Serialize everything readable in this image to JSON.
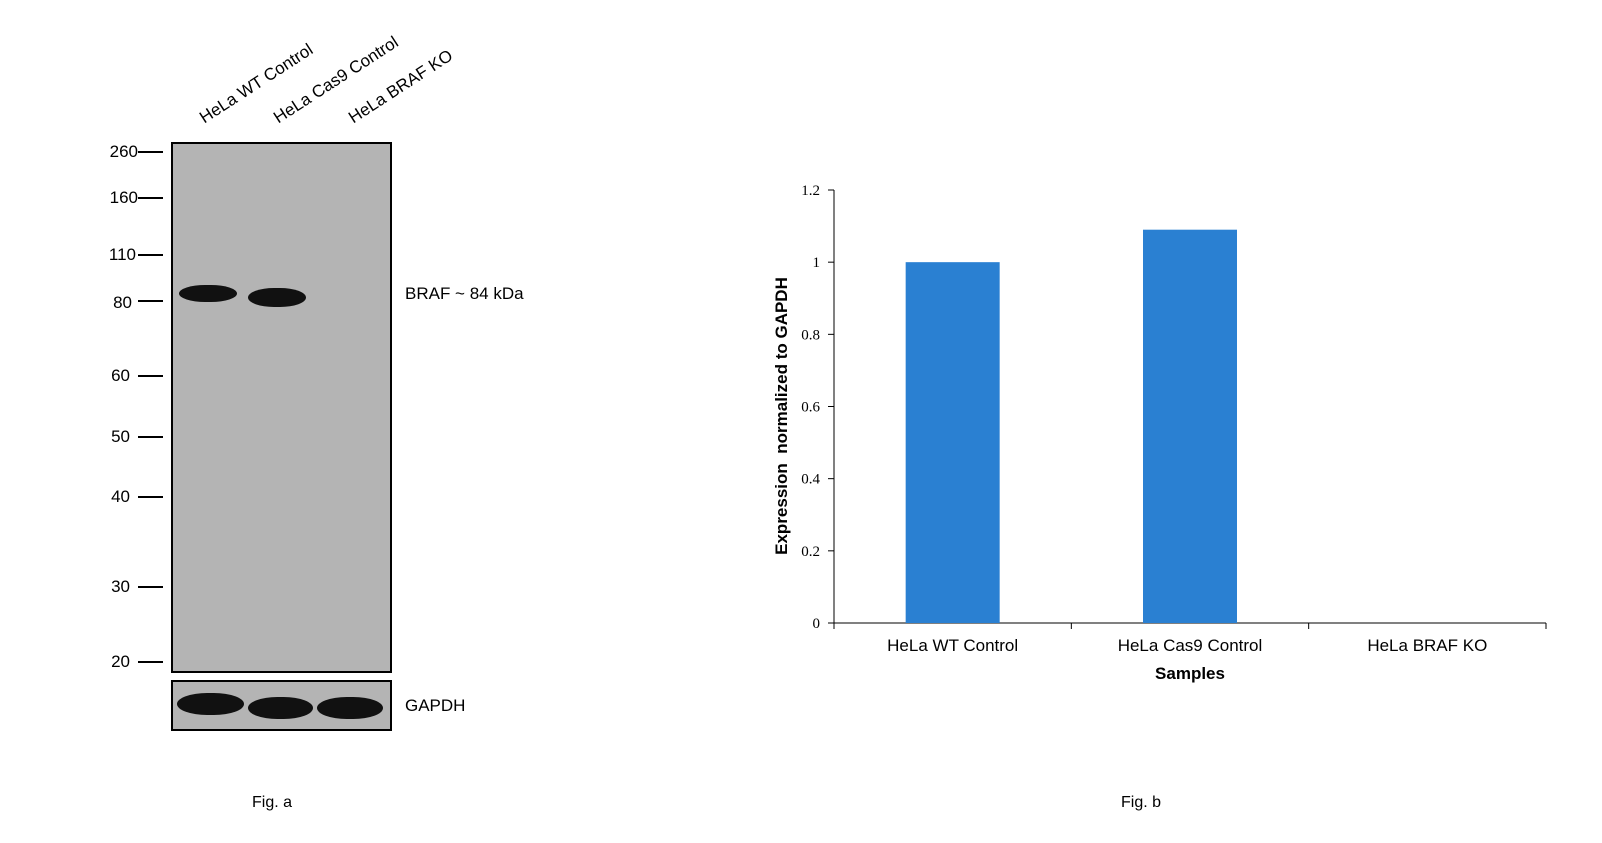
{
  "fig_a": {
    "caption": "Fig. a",
    "lanes": [
      "HeLa WT Control",
      "HeLa Cas9 Control",
      "HeLa BRAF KO"
    ],
    "mw_markers": [
      "260",
      "160",
      "110",
      "80",
      "60",
      "50",
      "40",
      "30",
      "20"
    ],
    "target_label": "BRAF ~ 84 kDa",
    "loading_control_label": "GAPDH",
    "blot_background_color": "#b4b4b4",
    "band_color": "#111111"
  },
  "fig_b": {
    "caption": "Fig. b"
  },
  "chart_data": {
    "type": "bar",
    "categories": [
      "HeLa WT Control",
      "HeLa Cas9 Control",
      "HeLa BRAF KO"
    ],
    "values": [
      1.0,
      1.09,
      0
    ],
    "xlabel": "Samples",
    "ylabel": "Expression  normalized to GAPDH",
    "ylim": [
      0,
      1.2
    ],
    "yticks": [
      "0",
      "0.2",
      "0.4",
      "0.6",
      "0.8",
      "1",
      "1.2"
    ],
    "bar_color": "#2a80d2",
    "grid": false,
    "legend": "none"
  }
}
